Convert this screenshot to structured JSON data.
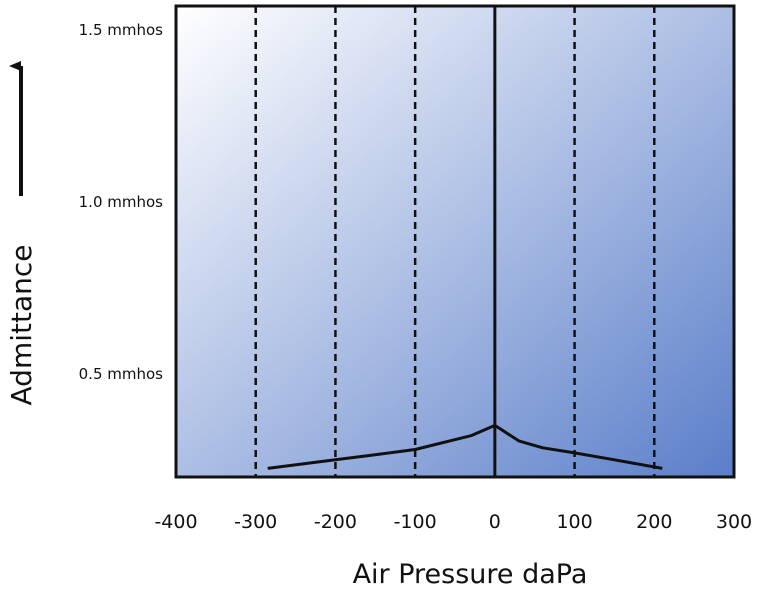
{
  "chart_data": {
    "type": "line",
    "xlabel": "Air Pressure daPa",
    "ylabel": "Admittance",
    "xlim": [
      -400,
      300
    ],
    "ylim": [
      0.2,
      1.57
    ],
    "x_ticks": [
      {
        "value": -400,
        "label": "-400"
      },
      {
        "value": -300,
        "label": "-300"
      },
      {
        "value": -200,
        "label": "-200"
      },
      {
        "value": -100,
        "label": "-100"
      },
      {
        "value": 0,
        "label": "0"
      },
      {
        "value": 100,
        "label": "100"
      },
      {
        "value": 200,
        "label": "200"
      },
      {
        "value": 300,
        "label": "300"
      }
    ],
    "y_ticks": [
      {
        "value": 1.5,
        "label": "1.5 mmhos"
      },
      {
        "value": 1.0,
        "label": "1.0 mmhos"
      },
      {
        "value": 0.5,
        "label": "0.5 mmhos"
      }
    ],
    "dashed_vertical_lines": [
      -300,
      -200,
      -100,
      100,
      200
    ],
    "solid_vertical_lines": [
      0
    ],
    "grid": false,
    "series": [
      {
        "x": [
          -285,
          -200,
          -150,
          -100,
          -30,
          0,
          30,
          60,
          100,
          150,
          210
        ],
        "y": [
          0.225,
          0.25,
          0.265,
          0.28,
          0.32,
          0.35,
          0.305,
          0.285,
          0.27,
          0.25,
          0.225
        ]
      }
    ]
  },
  "colors": {
    "gradient_start": "#ffffff",
    "gradient_end": "#5a7ec9",
    "line": "#111111",
    "frame": "#111111",
    "text": "#111111"
  },
  "icons": {
    "y_axis_arrow": "up-arrow-icon"
  }
}
